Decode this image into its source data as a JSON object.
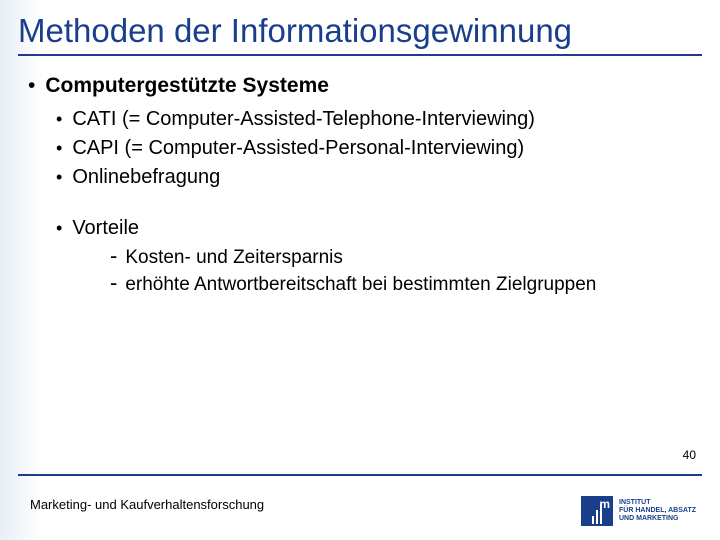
{
  "colors": {
    "title": "#1a3e8c",
    "rule": "#1a3e8c",
    "text": "#000000",
    "logo_bg": "#1a3e8c",
    "logo_fg": "#ffffff",
    "bg_gradient_start": "#e8eef7",
    "bg_gradient_end": "#ffffff"
  },
  "title": "Methoden der Informationsgewinnung",
  "main": {
    "heading": "Computergestützte Systeme",
    "items": [
      "CATI (= Computer-Assisted-Telephone-Interviewing)",
      "CAPI (= Computer-Assisted-Personal-Interviewing)",
      "Onlinebefragung"
    ],
    "advantages_label": "Vorteile",
    "advantages": [
      "Kosten- und Zeitersparnis",
      "erhöhte Antwortbereitschaft bei bestimmten Zielgruppen"
    ]
  },
  "page_number": "40",
  "footer": "Marketing- und Kaufverhaltensforschung",
  "logo": {
    "mark_letter": "m",
    "line1": "INSTITUT",
    "line2": "FÜR HANDEL, ABSATZ",
    "line3": "UND MARKETING"
  }
}
